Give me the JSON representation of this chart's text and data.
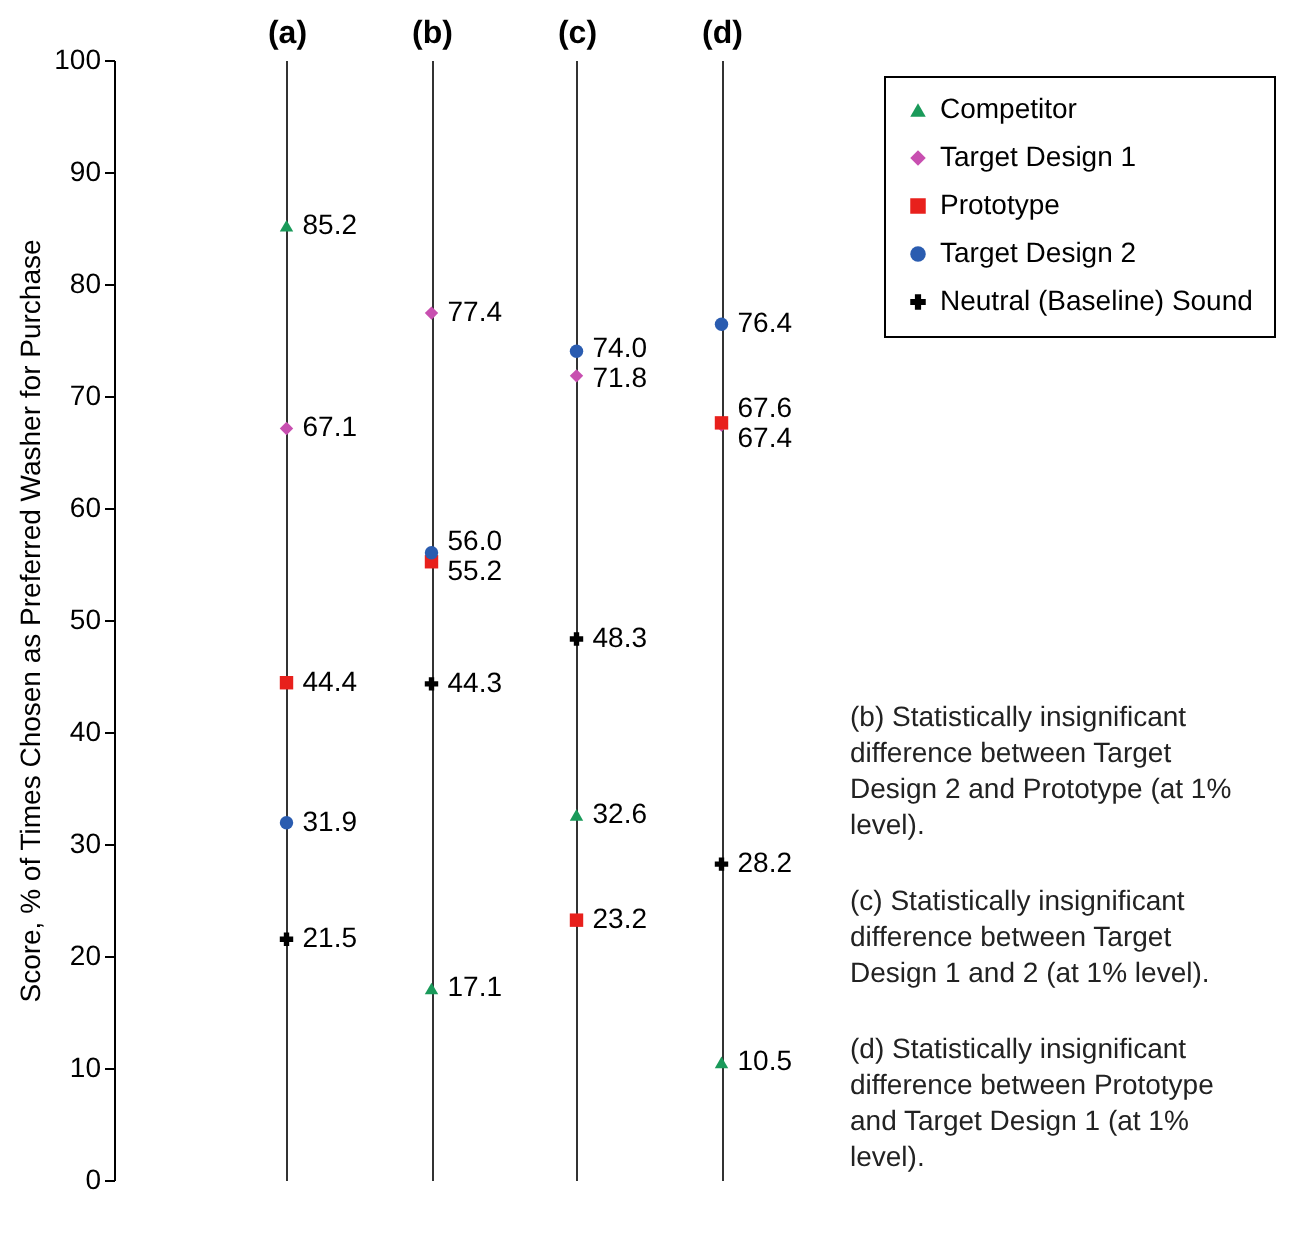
{
  "chart_data": {
    "type": "scatter",
    "ylabel": "Score, % of Times Chosen as Preferred Washer for Purchase",
    "categories": [
      "(a)",
      "(b)",
      "(c)",
      "(d)"
    ],
    "series": [
      {
        "name": "Competitor",
        "color": "#1a9a5a",
        "marker": "triangle",
        "values": [
          85.2,
          17.1,
          32.6,
          10.5
        ],
        "value_labels": [
          "85.2",
          "17.1",
          "32.6",
          "10.5"
        ]
      },
      {
        "name": "Target Design 1",
        "color": "#c84fb0",
        "marker": "diamond",
        "values": [
          67.1,
          77.4,
          71.8,
          67.4
        ],
        "value_labels": [
          "67.1",
          "77.4",
          "71.8",
          "67.4"
        ]
      },
      {
        "name": "Prototype",
        "color": "#e8201c",
        "marker": "square",
        "values": [
          44.4,
          55.2,
          23.2,
          67.6
        ],
        "value_labels": [
          "44.4",
          "55.2",
          "23.2",
          "67.6"
        ]
      },
      {
        "name": "Target Design 2",
        "color": "#2a5cb0",
        "marker": "circle",
        "values": [
          31.9,
          56.0,
          74.0,
          76.4
        ],
        "value_labels": [
          "31.9",
          "56.0",
          "74.0",
          "76.4"
        ]
      },
      {
        "name": "Neutral (Baseline) Sound",
        "color": "#000000",
        "marker": "cross",
        "values": [
          21.5,
          44.3,
          48.3,
          28.2
        ],
        "value_labels": [
          "21.5",
          "44.3",
          "48.3",
          "28.2"
        ]
      }
    ],
    "ylim": [
      0,
      100
    ],
    "yticks": [
      0,
      10,
      20,
      30,
      40,
      50,
      60,
      70,
      80,
      90,
      100
    ],
    "grid": "x",
    "legend": "top right",
    "annotations": [
      "(b) Statistically insignificant difference between Target Design 2 and Prototype (at 1% level).",
      "(c) Statistically insignificant difference between Target Design 1 and 2 (at 1% level).",
      "(d) Statistically insignificant difference between Prototype and Target Design 1 (at 1% level)."
    ]
  }
}
